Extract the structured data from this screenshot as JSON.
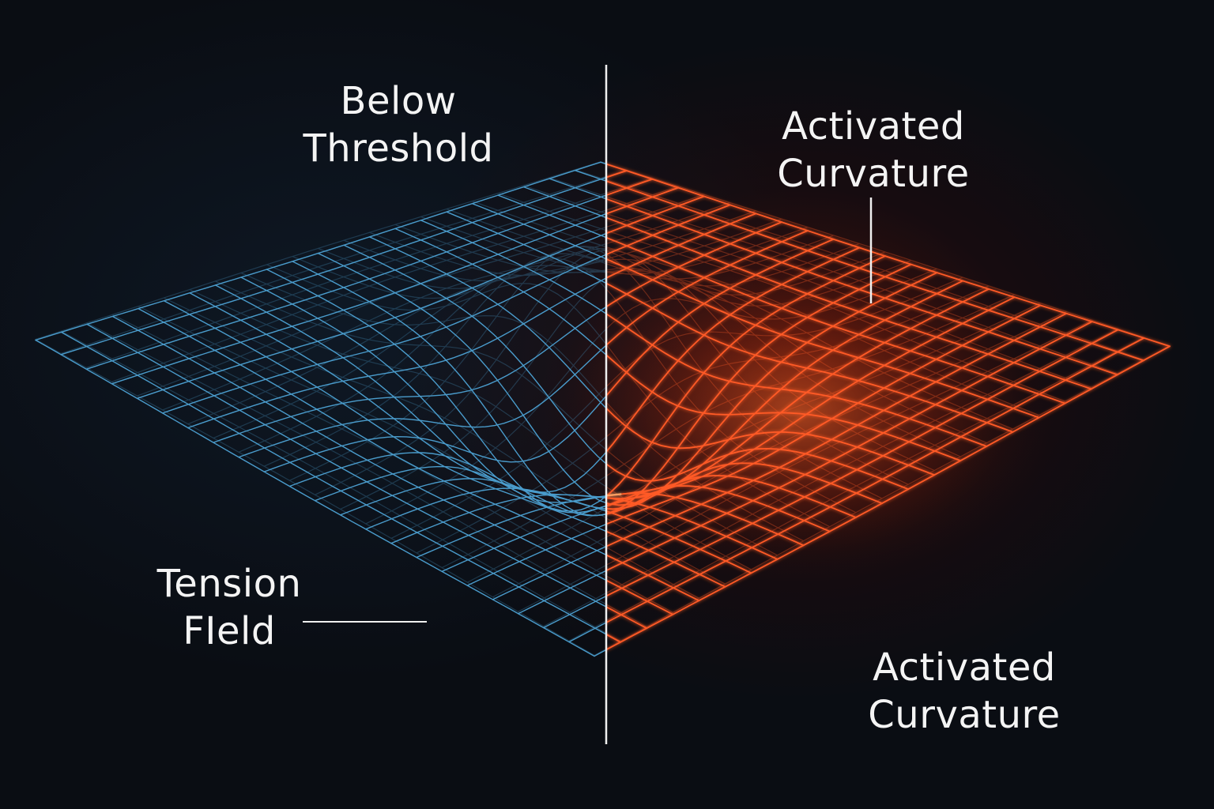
{
  "labels": {
    "below_threshold": [
      "Below",
      "Threshold"
    ],
    "activated_curvature_top": [
      "Activated",
      "Curvature"
    ],
    "activated_curvature_bottom": [
      "Activated",
      "Curvature"
    ],
    "tension_field": [
      "Tension",
      "FIeld"
    ]
  },
  "colors": {
    "background": "#0a0d13",
    "left_grid": "#4a9ccc",
    "right_grid": "#ff5a26",
    "right_grid_bright": "#ffb070",
    "divider": "#f0f0f0",
    "label_text": "#f4f4f4"
  }
}
